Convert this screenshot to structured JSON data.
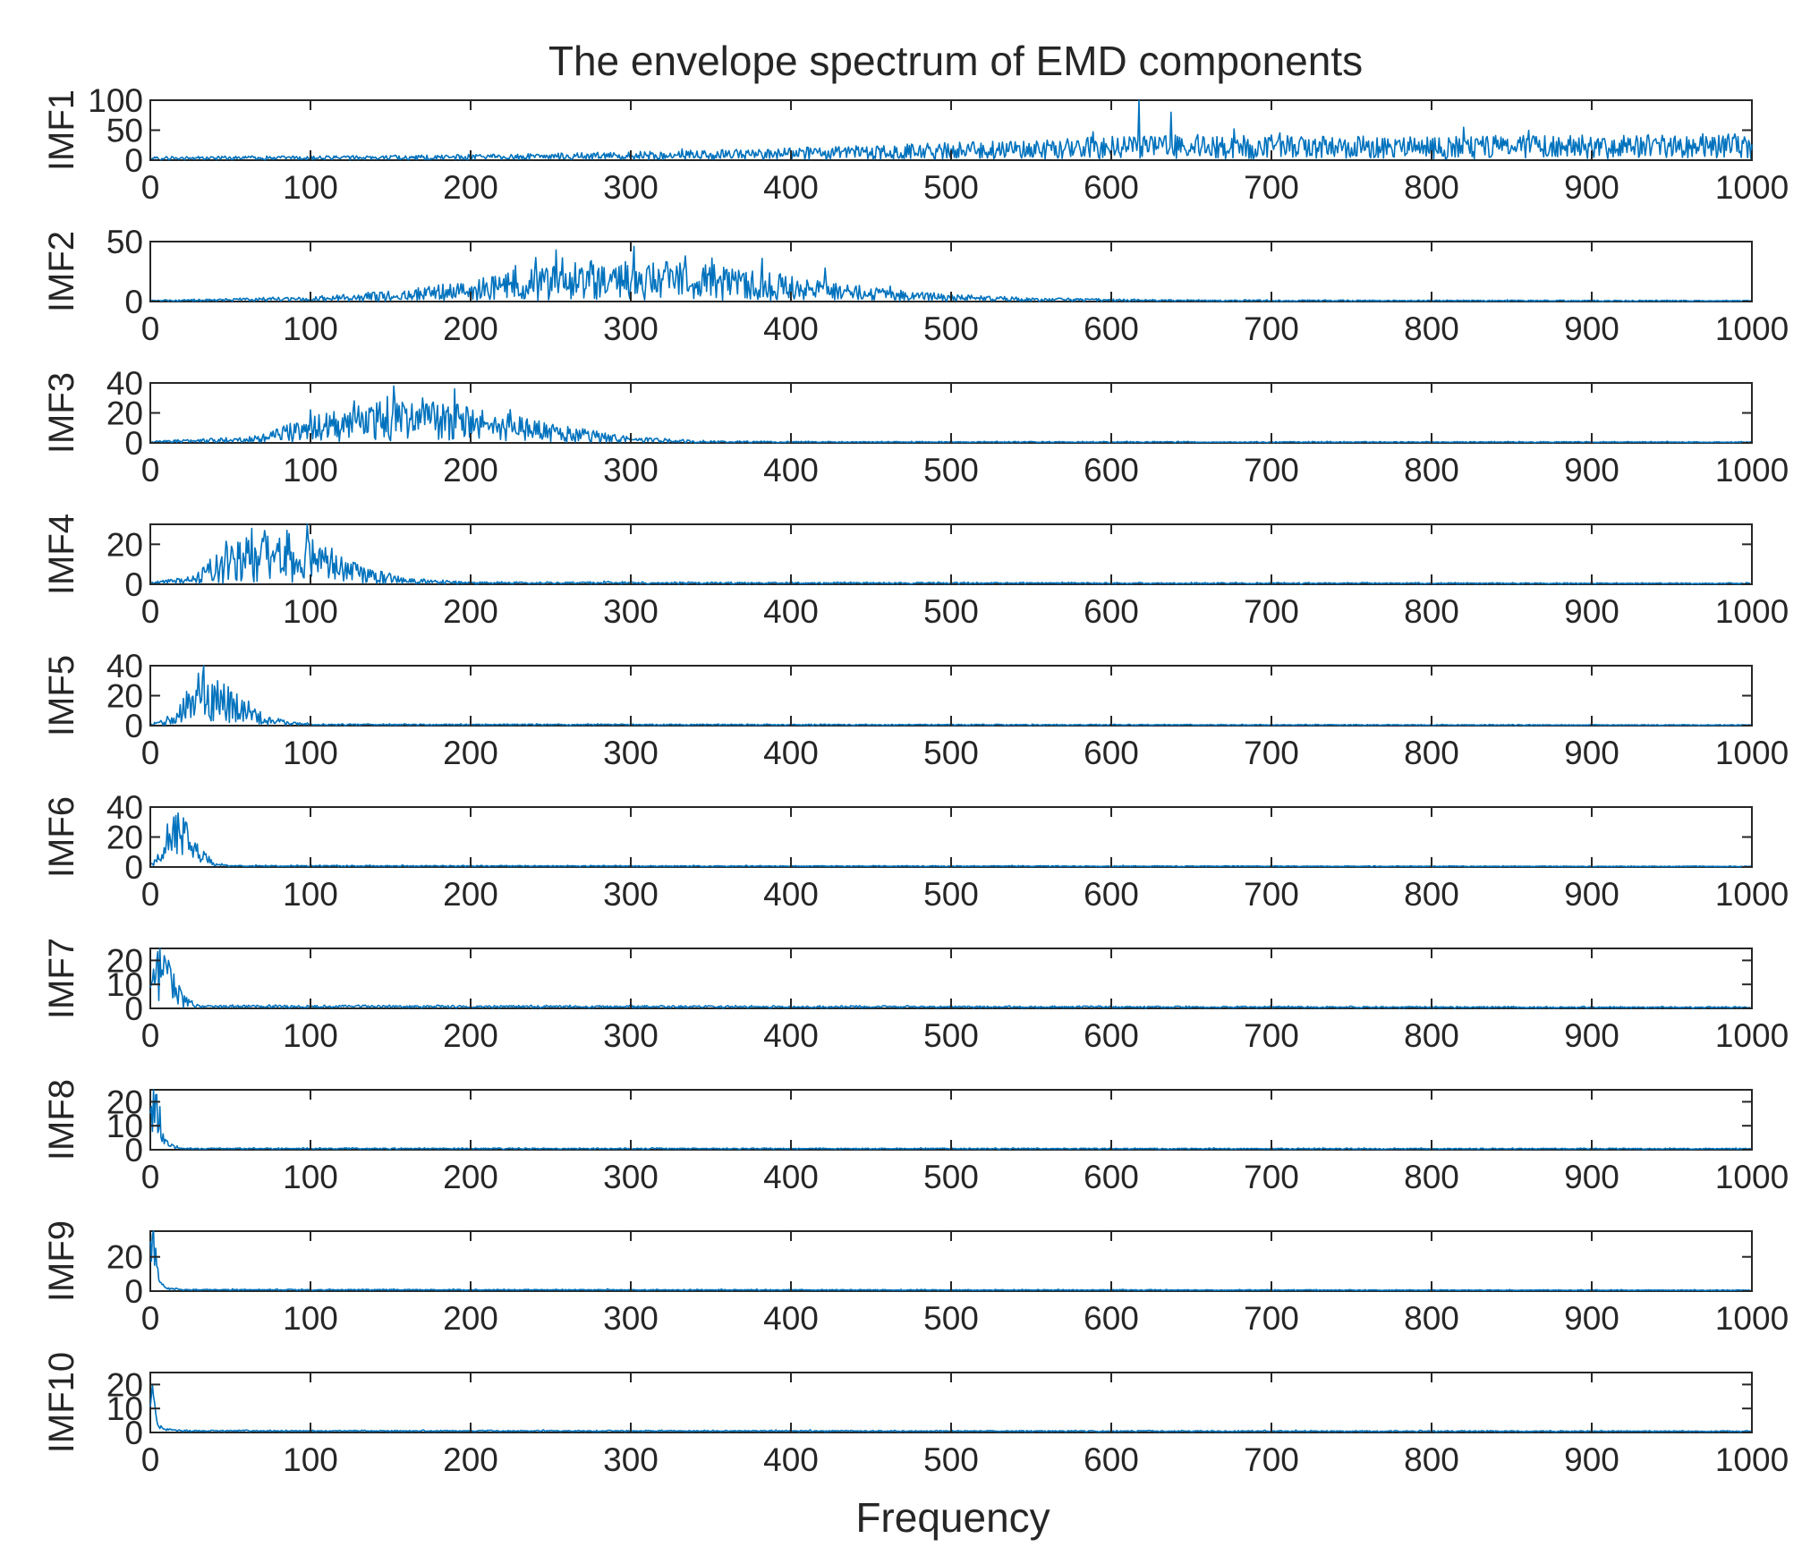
{
  "chart_data": {
    "type": "line",
    "title": "The envelope spectrum of EMD components",
    "xlabel": "Frequency",
    "xlim": [
      0,
      1000
    ],
    "xticks": [
      "0",
      "100",
      "200",
      "300",
      "400",
      "500",
      "600",
      "700",
      "800",
      "900",
      "1000"
    ],
    "line_color": "#0072BD",
    "subplots": [
      {
        "ylabel": "IMF1",
        "ylim": [
          0,
          100
        ],
        "yticks": [
          0,
          50,
          100
        ],
        "ytick_labels": [
          "0",
          "50",
          "100"
        ],
        "profile": [
          [
            0,
            3
          ],
          [
            150,
            4
          ],
          [
            250,
            6
          ],
          [
            350,
            9
          ],
          [
            450,
            13
          ],
          [
            550,
            18
          ],
          [
            620,
            22
          ],
          [
            700,
            22
          ],
          [
            800,
            21
          ],
          [
            900,
            22
          ],
          [
            1000,
            24
          ]
        ],
        "noise": 0.9,
        "peaks": [
          [
            617,
            100
          ],
          [
            637,
            80
          ],
          [
            820,
            55
          ],
          [
            757,
            40
          ],
          [
            975,
            38
          ],
          [
            700,
            42
          ]
        ]
      },
      {
        "ylabel": "IMF2",
        "ylim": [
          0,
          50
        ],
        "yticks": [
          0,
          50
        ],
        "ytick_labels": [
          "0",
          "50"
        ],
        "profile": [
          [
            0,
            0.5
          ],
          [
            100,
            2
          ],
          [
            160,
            5
          ],
          [
            200,
            9
          ],
          [
            250,
            16
          ],
          [
            300,
            18
          ],
          [
            350,
            16
          ],
          [
            400,
            11
          ],
          [
            450,
            6
          ],
          [
            500,
            3
          ],
          [
            550,
            1.5
          ],
          [
            650,
            0.6
          ],
          [
            1000,
            0.4
          ]
        ],
        "noise": 0.95,
        "peaks": [
          [
            253,
            43
          ],
          [
            302,
            46
          ],
          [
            334,
            38
          ],
          [
            382,
            36
          ],
          [
            421,
            28
          ],
          [
            228,
            30
          ],
          [
            275,
            34
          ]
        ]
      },
      {
        "ylabel": "IMF3",
        "ylim": [
          0,
          40
        ],
        "yticks": [
          0,
          20,
          40
        ],
        "ytick_labels": [
          "0",
          "20",
          "40"
        ],
        "profile": [
          [
            0,
            0.5
          ],
          [
            60,
            2
          ],
          [
            100,
            9
          ],
          [
            150,
            15
          ],
          [
            200,
            13
          ],
          [
            250,
            7
          ],
          [
            300,
            2
          ],
          [
            340,
            0.8
          ],
          [
            400,
            0.4
          ],
          [
            1000,
            0.3
          ]
        ],
        "noise": 0.95,
        "peaks": [
          [
            100,
            22
          ],
          [
            152,
            38
          ],
          [
            190,
            36
          ],
          [
            127,
            28
          ],
          [
            170,
            30
          ],
          [
            235,
            16
          ]
        ]
      },
      {
        "ylabel": "IMF4",
        "ylim": [
          0,
          30
        ],
        "yticks": [
          0,
          20
        ],
        "ytick_labels": [
          "0",
          "20"
        ],
        "profile": [
          [
            0,
            0.5
          ],
          [
            25,
            2
          ],
          [
            45,
            9
          ],
          [
            70,
            14
          ],
          [
            100,
            12
          ],
          [
            130,
            5
          ],
          [
            160,
            1.5
          ],
          [
            200,
            0.5
          ],
          [
            1000,
            0.2
          ]
        ],
        "noise": 0.95,
        "peaks": [
          [
            63,
            28
          ],
          [
            85,
            27
          ],
          [
            98,
            30
          ],
          [
            73,
            24
          ],
          [
            113,
            18
          ]
        ]
      },
      {
        "ylabel": "IMF5",
        "ylim": [
          0,
          40
        ],
        "yticks": [
          0,
          20,
          40
        ],
        "ytick_labels": [
          "0",
          "20",
          "40"
        ],
        "profile": [
          [
            0,
            0.5
          ],
          [
            15,
            3
          ],
          [
            25,
            15
          ],
          [
            40,
            20
          ],
          [
            55,
            12
          ],
          [
            70,
            5
          ],
          [
            85,
            1.5
          ],
          [
            100,
            0.5
          ],
          [
            1000,
            0.2
          ]
        ],
        "noise": 0.9,
        "peaks": [
          [
            30,
            35
          ],
          [
            42,
            30
          ],
          [
            36,
            27
          ],
          [
            50,
            22
          ]
        ]
      },
      {
        "ylabel": "IMF6",
        "ylim": [
          0,
          40
        ],
        "yticks": [
          0,
          20,
          40
        ],
        "ytick_labels": [
          "0",
          "20",
          "40"
        ],
        "profile": [
          [
            0,
            1
          ],
          [
            8,
            8
          ],
          [
            15,
            22
          ],
          [
            22,
            18
          ],
          [
            30,
            8
          ],
          [
            40,
            2
          ],
          [
            50,
            0.5
          ],
          [
            1000,
            0.2
          ]
        ],
        "noise": 0.75,
        "peaks": [
          [
            17,
            36
          ],
          [
            22,
            30
          ],
          [
            12,
            22
          ],
          [
            28,
            16
          ]
        ]
      },
      {
        "ylabel": "IMF7",
        "ylim": [
          0,
          25
        ],
        "yticks": [
          0,
          10,
          20
        ],
        "ytick_labels": [
          "0",
          "10",
          "20"
        ],
        "profile": [
          [
            0,
            5
          ],
          [
            5,
            14
          ],
          [
            10,
            14
          ],
          [
            15,
            8
          ],
          [
            20,
            3
          ],
          [
            30,
            0.6
          ],
          [
            1000,
            0.2
          ]
        ],
        "noise": 0.9,
        "peaks": [
          [
            6,
            25
          ],
          [
            9,
            22
          ],
          [
            12,
            18
          ],
          [
            4,
            20
          ]
        ]
      },
      {
        "ylabel": "IMF8",
        "ylim": [
          0,
          25
        ],
        "yticks": [
          0,
          10,
          20
        ],
        "ytick_labels": [
          "0",
          "10",
          "20"
        ],
        "profile": [
          [
            0,
            10
          ],
          [
            3,
            15
          ],
          [
            6,
            10
          ],
          [
            10,
            3
          ],
          [
            15,
            0.8
          ],
          [
            25,
            0.3
          ],
          [
            1000,
            0.2
          ]
        ],
        "noise": 0.6,
        "peaks": [
          [
            2,
            25
          ],
          [
            4,
            23
          ],
          [
            6,
            18
          ]
        ]
      },
      {
        "ylabel": "IMF9",
        "ylim": [
          0,
          35
        ],
        "yticks": [
          0,
          20
        ],
        "ytick_labels": [
          "0",
          "20"
        ],
        "profile": [
          [
            0,
            22
          ],
          [
            2,
            30
          ],
          [
            4,
            12
          ],
          [
            6,
            4
          ],
          [
            10,
            1.5
          ],
          [
            20,
            0.6
          ],
          [
            1000,
            0.3
          ]
        ],
        "noise": 0.4,
        "peaks": [
          [
            1,
            33
          ],
          [
            3,
            25
          ]
        ]
      },
      {
        "ylabel": "IMF10",
        "ylim": [
          0,
          25
        ],
        "yticks": [
          0,
          10,
          20
        ],
        "ytick_labels": [
          "0",
          "10",
          "20"
        ],
        "profile": [
          [
            0,
            16
          ],
          [
            1,
            20
          ],
          [
            3,
            8
          ],
          [
            6,
            2
          ],
          [
            10,
            1
          ],
          [
            20,
            0.5
          ],
          [
            1000,
            0.3
          ]
        ],
        "noise": 0.4,
        "peaks": [
          [
            1,
            20
          ],
          [
            2,
            15
          ]
        ]
      }
    ]
  }
}
